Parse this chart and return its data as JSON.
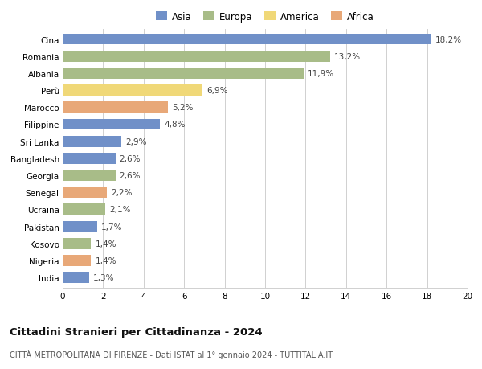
{
  "categories": [
    "Cina",
    "Romania",
    "Albania",
    "Perù",
    "Marocco",
    "Filippine",
    "Sri Lanka",
    "Bangladesh",
    "Georgia",
    "Senegal",
    "Ucraina",
    "Pakistan",
    "Kosovo",
    "Nigeria",
    "India"
  ],
  "values": [
    18.2,
    13.2,
    11.9,
    6.9,
    5.2,
    4.8,
    2.9,
    2.6,
    2.6,
    2.2,
    2.1,
    1.7,
    1.4,
    1.4,
    1.3
  ],
  "labels": [
    "18,2%",
    "13,2%",
    "11,9%",
    "6,9%",
    "5,2%",
    "4,8%",
    "2,9%",
    "2,6%",
    "2,6%",
    "2,2%",
    "2,1%",
    "1,7%",
    "1,4%",
    "1,4%",
    "1,3%"
  ],
  "continents": [
    "Asia",
    "Europa",
    "Europa",
    "America",
    "Africa",
    "Asia",
    "Asia",
    "Asia",
    "Europa",
    "Africa",
    "Europa",
    "Asia",
    "Europa",
    "Africa",
    "Asia"
  ],
  "colors": {
    "Asia": "#7090c8",
    "Europa": "#a8bc88",
    "America": "#f0d878",
    "Africa": "#e8a878"
  },
  "legend_order": [
    "Asia",
    "Europa",
    "America",
    "Africa"
  ],
  "xlim": [
    0,
    20
  ],
  "xticks": [
    0,
    2,
    4,
    6,
    8,
    10,
    12,
    14,
    16,
    18,
    20
  ],
  "title": "Cittadini Stranieri per Cittadinanza - 2024",
  "subtitle": "CITTÀ METROPOLITANA DI FIRENZE - Dati ISTAT al 1° gennaio 2024 - TUTTITALIA.IT",
  "background_color": "#ffffff",
  "grid_color": "#d0d0d0",
  "bar_height": 0.65,
  "label_fontsize": 7.5,
  "value_fontsize": 7.5,
  "tick_fontsize": 7.5,
  "title_fontsize": 9.5,
  "subtitle_fontsize": 7.0,
  "legend_fontsize": 8.5
}
